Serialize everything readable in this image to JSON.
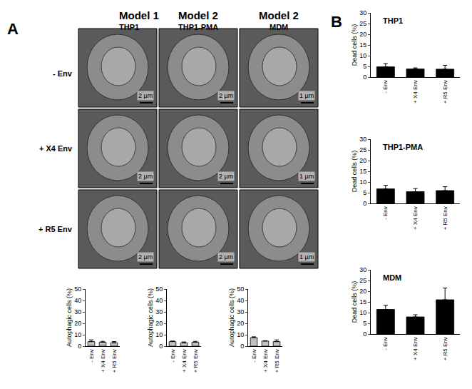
{
  "panel_labels": [
    "A",
    "B"
  ],
  "models": [
    {
      "label": "Model 1",
      "cell": "THP1"
    },
    {
      "label": "Model 2",
      "cell": "THP1-PMA"
    },
    {
      "label": "Model 2",
      "cell": "MDM"
    }
  ],
  "conditions": [
    "- Env",
    "+ X4 Env",
    "+ R5 Env"
  ],
  "scale_bars": [
    [
      "2 µm",
      "2 µm",
      "1 µm"
    ],
    [
      "2 µm",
      "2 µm",
      "1 µm"
    ],
    [
      "2 µm",
      "2 µm",
      "1 µm"
    ]
  ],
  "chart_data": [
    {
      "type": "bar",
      "y_label": "Autophagic cells (%)",
      "categories": [
        "- Env",
        "+ X4 Env",
        "+ R5 Env"
      ],
      "values": [
        4,
        3.5,
        3
      ],
      "errors": [
        1.5,
        0.7,
        1
      ],
      "color": "#c0c0c0",
      "ylim": [
        0,
        50
      ],
      "yticks": [
        0,
        10,
        20,
        30,
        40,
        50
      ]
    },
    {
      "type": "bar",
      "y_label": "Autophagic cells (%)",
      "categories": [
        "- Env",
        "+ X4 Env",
        "+ R5 Env"
      ],
      "values": [
        4,
        3,
        3.5
      ],
      "errors": [
        0.5,
        0.7,
        0.7
      ],
      "color": "#c0c0c0",
      "ylim": [
        0,
        50
      ],
      "yticks": [
        0,
        10,
        20,
        30,
        40,
        50
      ]
    },
    {
      "type": "bar",
      "y_label": "Autophagic cells (%)",
      "categories": [
        "- Env",
        "+ X4 Env",
        "+ R5 Env"
      ],
      "values": [
        7.5,
        4.5,
        4
      ],
      "errors": [
        0.7,
        0.3,
        1.5
      ],
      "color": "#c0c0c0",
      "ylim": [
        0,
        50
      ],
      "yticks": [
        0,
        10,
        20,
        30,
        40,
        50
      ]
    },
    {
      "type": "bar",
      "title": "THP1",
      "y_label": "Dead cells (%)",
      "categories": [
        "- Env",
        "+ X4 Env",
        "+ R5 Env"
      ],
      "values": [
        4.8,
        3.8,
        3.7
      ],
      "errors": [
        1.5,
        0.5,
        1.8
      ],
      "color": "#000000",
      "ylim": [
        0,
        30
      ],
      "yticks": [
        0,
        5,
        10,
        15,
        20,
        25,
        30
      ]
    },
    {
      "type": "bar",
      "title": "THP1-PMA",
      "y_label": "Dead cells (%)",
      "categories": [
        "- Env",
        "+ X4 Env",
        "+ R5 Env"
      ],
      "values": [
        6.8,
        5.5,
        6
      ],
      "errors": [
        1.7,
        1.4,
        1.8
      ],
      "color": "#000000",
      "ylim": [
        0,
        30
      ],
      "yticks": [
        0,
        5,
        10,
        15,
        20,
        25,
        30
      ]
    },
    {
      "type": "bar",
      "title": "MDM",
      "y_label": "Dead cells (%)",
      "categories": [
        "- Env",
        "+ X4 Env",
        "+ R5 Env"
      ],
      "values": [
        11.5,
        8,
        16
      ],
      "errors": [
        2,
        1,
        5.5
      ],
      "color": "#000000",
      "ylim": [
        0,
        30
      ],
      "yticks": [
        0,
        5,
        10,
        15,
        20,
        25,
        30
      ]
    }
  ]
}
